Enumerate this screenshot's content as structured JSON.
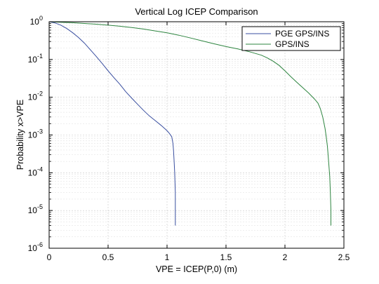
{
  "chart_data": {
    "type": "line",
    "title": "Vertical Log ICEP Comparison",
    "xlabel": "VPE = ICEP(P,0) (m)",
    "ylabel": "Probability x>VPE",
    "xlim": [
      0,
      2.5
    ],
    "ylim": [
      1e-06,
      1
    ],
    "y_scale": "log",
    "grid": true,
    "legend_position": "top-right",
    "x_ticks": [
      "0",
      "0.5",
      "1",
      "1.5",
      "2",
      "2.5"
    ],
    "y_ticks": [
      {
        "base": "10",
        "exp": "0"
      },
      {
        "base": "10",
        "exp": "-1"
      },
      {
        "base": "10",
        "exp": "-2"
      },
      {
        "base": "10",
        "exp": "-3"
      },
      {
        "base": "10",
        "exp": "-4"
      },
      {
        "base": "10",
        "exp": "-5"
      },
      {
        "base": "10",
        "exp": "-6"
      }
    ],
    "series": [
      {
        "name": "PGE GPS/INS",
        "color": "#3a4fa0",
        "x": [
          0,
          0.05,
          0.1,
          0.15,
          0.2,
          0.25,
          0.3,
          0.35,
          0.4,
          0.45,
          0.5,
          0.55,
          0.6,
          0.65,
          0.7,
          0.75,
          0.8,
          0.85,
          0.9,
          0.95,
          1.0,
          1.02,
          1.04,
          1.05,
          1.055,
          1.06,
          1.065,
          1.07,
          1.07
        ],
        "y": [
          1,
          0.93,
          0.81,
          0.66,
          0.51,
          0.38,
          0.27,
          0.18,
          0.12,
          0.078,
          0.05,
          0.033,
          0.022,
          0.014,
          0.0095,
          0.0065,
          0.0045,
          0.0032,
          0.0024,
          0.0018,
          0.0013,
          0.0011,
          0.0009,
          0.0006,
          0.0004,
          0.0002,
          0.0001,
          3e-05,
          4e-06
        ]
      },
      {
        "name": "GPS/INS",
        "color": "#2e8540",
        "x": [
          0,
          0.1,
          0.2,
          0.3,
          0.4,
          0.5,
          0.6,
          0.7,
          0.8,
          0.9,
          1.0,
          1.1,
          1.2,
          1.3,
          1.4,
          1.5,
          1.6,
          1.7,
          1.8,
          1.85,
          1.9,
          1.95,
          2.0,
          2.05,
          2.1,
          2.15,
          2.2,
          2.25,
          2.28,
          2.3,
          2.32,
          2.34,
          2.35,
          2.36,
          2.37,
          2.38,
          2.385,
          2.39,
          2.39
        ],
        "y": [
          1,
          0.97,
          0.94,
          0.9,
          0.86,
          0.81,
          0.76,
          0.7,
          0.64,
          0.57,
          0.51,
          0.44,
          0.37,
          0.31,
          0.26,
          0.22,
          0.19,
          0.16,
          0.13,
          0.11,
          0.09,
          0.07,
          0.05,
          0.035,
          0.025,
          0.018,
          0.013,
          0.009,
          0.007,
          0.005,
          0.003,
          0.0015,
          0.0009,
          0.0005,
          0.0002,
          8e-05,
          3e-05,
          1e-05,
          4e-06
        ]
      }
    ]
  }
}
